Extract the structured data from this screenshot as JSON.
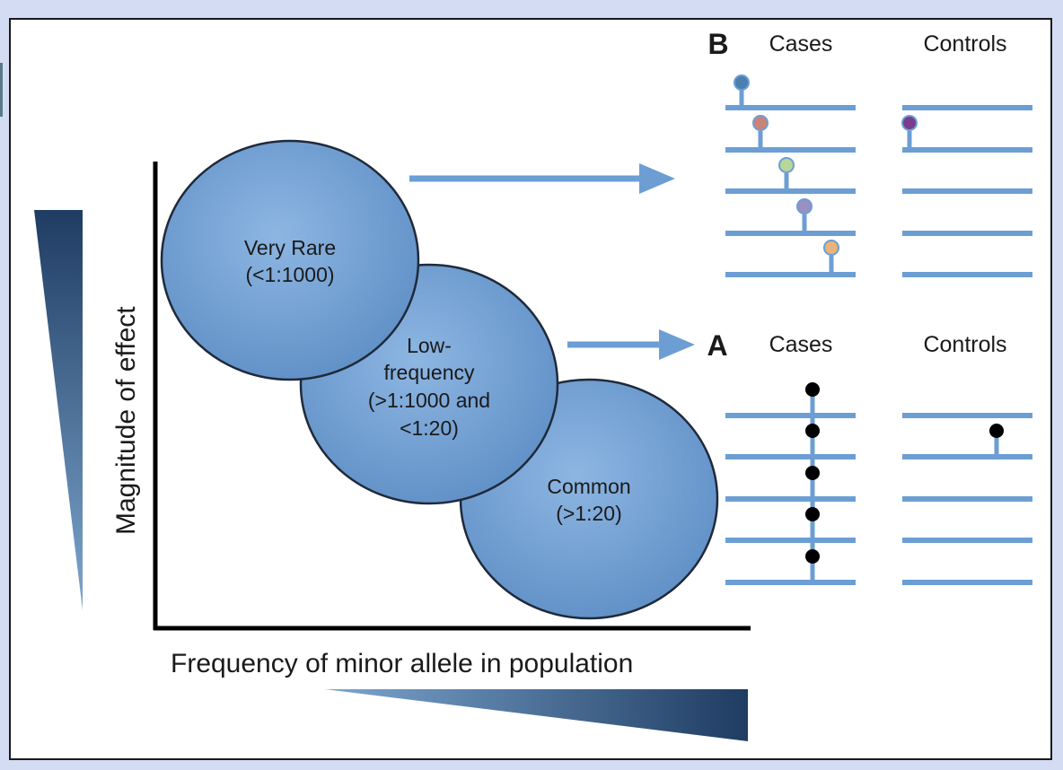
{
  "colors": {
    "background": "#d4dcf4",
    "panel": "#ffffff",
    "circle_fill": "#6f9fd3",
    "circle_stroke": "#1f2a3a",
    "strand": "#6c9ed4",
    "arrow": "#6c9ed4",
    "wedge_dark": "#1f3c62",
    "wedge_light": "#7da6cf",
    "axis": "#000000"
  },
  "axes": {
    "x_title": "Frequency of minor allele in population",
    "y_title": "Magnitude of effect"
  },
  "circles": [
    {
      "id": "very-rare",
      "lines": [
        "Very Rare",
        "(<1:1000)"
      ]
    },
    {
      "id": "low-frequency",
      "lines": [
        "Low-",
        "frequency",
        "(>1:1000 and",
        "<1:20)"
      ]
    },
    {
      "id": "common",
      "lines": [
        "Common",
        "(>1:20)"
      ]
    }
  ],
  "panel_b": {
    "letter": "B",
    "cases_label": "Cases",
    "controls_label": "Controls",
    "variant_colors": [
      "#4a7fb0",
      "#c98377",
      "#b9d59a",
      "#9a8ec2",
      "#e8b47c"
    ],
    "control_variant_color": "#7a3d8e"
  },
  "panel_a": {
    "letter": "A",
    "cases_label": "Cases",
    "controls_label": "Controls",
    "variant_color": "#000000"
  }
}
